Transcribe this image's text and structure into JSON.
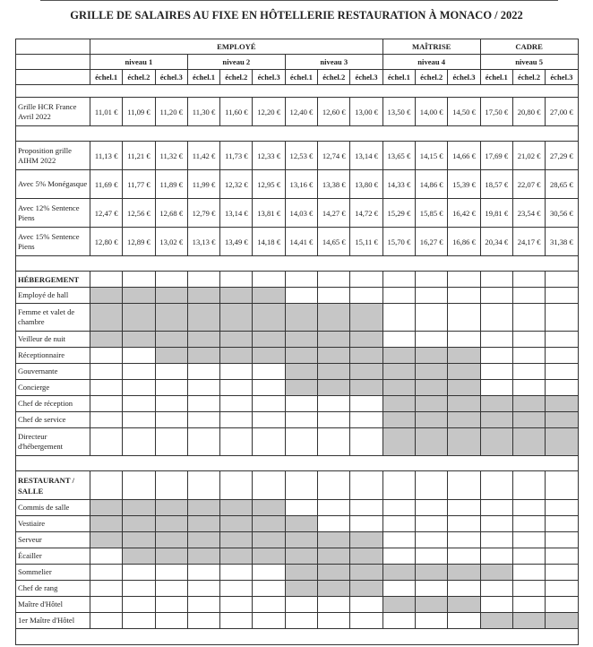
{
  "title": "GRILLE DE SALAIRES AU FIXE EN HÔTELLERIE RESTAURATION À MONACO / 2022",
  "header": {
    "categories": [
      {
        "label": "EMPLOYÉ",
        "span": 9
      },
      {
        "label": "MAÎTRISE",
        "span": 3
      },
      {
        "label": "CADRE",
        "span": 3
      }
    ],
    "levels": [
      "niveau 1",
      "niveau 2",
      "niveau 3",
      "niveau 4",
      "niveau 5"
    ],
    "steps": [
      "échel.1",
      "échel.2",
      "échel.3",
      "échel.1",
      "échel.2",
      "échel.3",
      "échel.1",
      "échel.2",
      "échel.3",
      "échel.1",
      "échel.2",
      "échel.3",
      "échel.1",
      "échel.2",
      "échel.3"
    ]
  },
  "salary_rows": [
    {
      "label": "Grille HCR France Avril 2022",
      "values": [
        "11,01 €",
        "11,09 €",
        "11,20 €",
        "11,30 €",
        "11,60 €",
        "12,20 €",
        "12,40 €",
        "12,60 €",
        "13,00 €",
        "13,50 €",
        "14,00 €",
        "14,50 €",
        "17,50 €",
        "20,80 €",
        "27,00 €"
      ]
    },
    {
      "label": "Proposition grille AIHM 2022",
      "values": [
        "11,13 €",
        "11,21 €",
        "11,32 €",
        "11,42 €",
        "11,73 €",
        "12,33 €",
        "12,53 €",
        "12,74 €",
        "13,14 €",
        "13,65 €",
        "14,15 €",
        "14,66 €",
        "17,69 €",
        "21,02 €",
        "27,29 €"
      ]
    },
    {
      "label": "Avec 5% Monégasque",
      "values": [
        "11,69 €",
        "11,77 €",
        "11,89 €",
        "11,99 €",
        "12,32 €",
        "12,95 €",
        "13,16 €",
        "13,38 €",
        "13,80 €",
        "14,33 €",
        "14,86 €",
        "15,39 €",
        "18,57 €",
        "22,07 €",
        "28,65 €"
      ]
    },
    {
      "label": "Avec 12% Sentence Piens",
      "values": [
        "12,47 €",
        "12,56 €",
        "12,68 €",
        "12,79 €",
        "13,14 €",
        "13,81 €",
        "14,03 €",
        "14,27 €",
        "14,72 €",
        "15,29 €",
        "15,85 €",
        "16,42 €",
        "19,81 €",
        "23,54 €",
        "30,56 €"
      ]
    },
    {
      "label": "Avec 15% Sentence Piens",
      "values": [
        "12,80 €",
        "12,89 €",
        "13,02 €",
        "13,13 €",
        "13,49 €",
        "14,18 €",
        "14,41 €",
        "14,65 €",
        "15,11 €",
        "15,70 €",
        "16,27 €",
        "16,86 €",
        "20,34 €",
        "24,17 €",
        "31,38 €"
      ]
    }
  ],
  "sections": [
    {
      "title": "HÉBERGEMENT",
      "jobs": [
        {
          "label": "Employé de hall",
          "range": [
            1,
            6
          ]
        },
        {
          "label": "Femme et valet de chambre",
          "range": [
            1,
            9
          ]
        },
        {
          "label": "Veilleur de nuit",
          "range": [
            1,
            9
          ]
        },
        {
          "label": "Réceptionnaire",
          "range": [
            3,
            12
          ]
        },
        {
          "label": "Gouvernante",
          "range": [
            7,
            12
          ]
        },
        {
          "label": "Concierge",
          "range": [
            7,
            12
          ]
        },
        {
          "label": "Chef de réception",
          "range": [
            10,
            15
          ]
        },
        {
          "label": "Chef de service",
          "range": [
            10,
            15
          ]
        },
        {
          "label": "Directeur d'hébergement",
          "range": [
            10,
            15
          ]
        }
      ]
    },
    {
      "title": "RESTAURANT / SALLE",
      "jobs": [
        {
          "label": "Commis de salle",
          "range": [
            1,
            6
          ]
        },
        {
          "label": "Vestiaire",
          "range": [
            1,
            7
          ]
        },
        {
          "label": "Serveur",
          "range": [
            1,
            9
          ]
        },
        {
          "label": "Écailler",
          "range": [
            2,
            9
          ]
        },
        {
          "label": "Sommelier",
          "range": [
            7,
            13
          ]
        },
        {
          "label": "Chef de rang",
          "range": [
            7,
            9
          ]
        },
        {
          "label": "Maître d'Hôtel",
          "range": [
            10,
            12
          ]
        },
        {
          "label": "1er Maître d'Hôtel",
          "range": [
            13,
            15
          ]
        }
      ]
    }
  ],
  "colors": {
    "shaded": "#c6c6c6",
    "border": "#333333"
  }
}
